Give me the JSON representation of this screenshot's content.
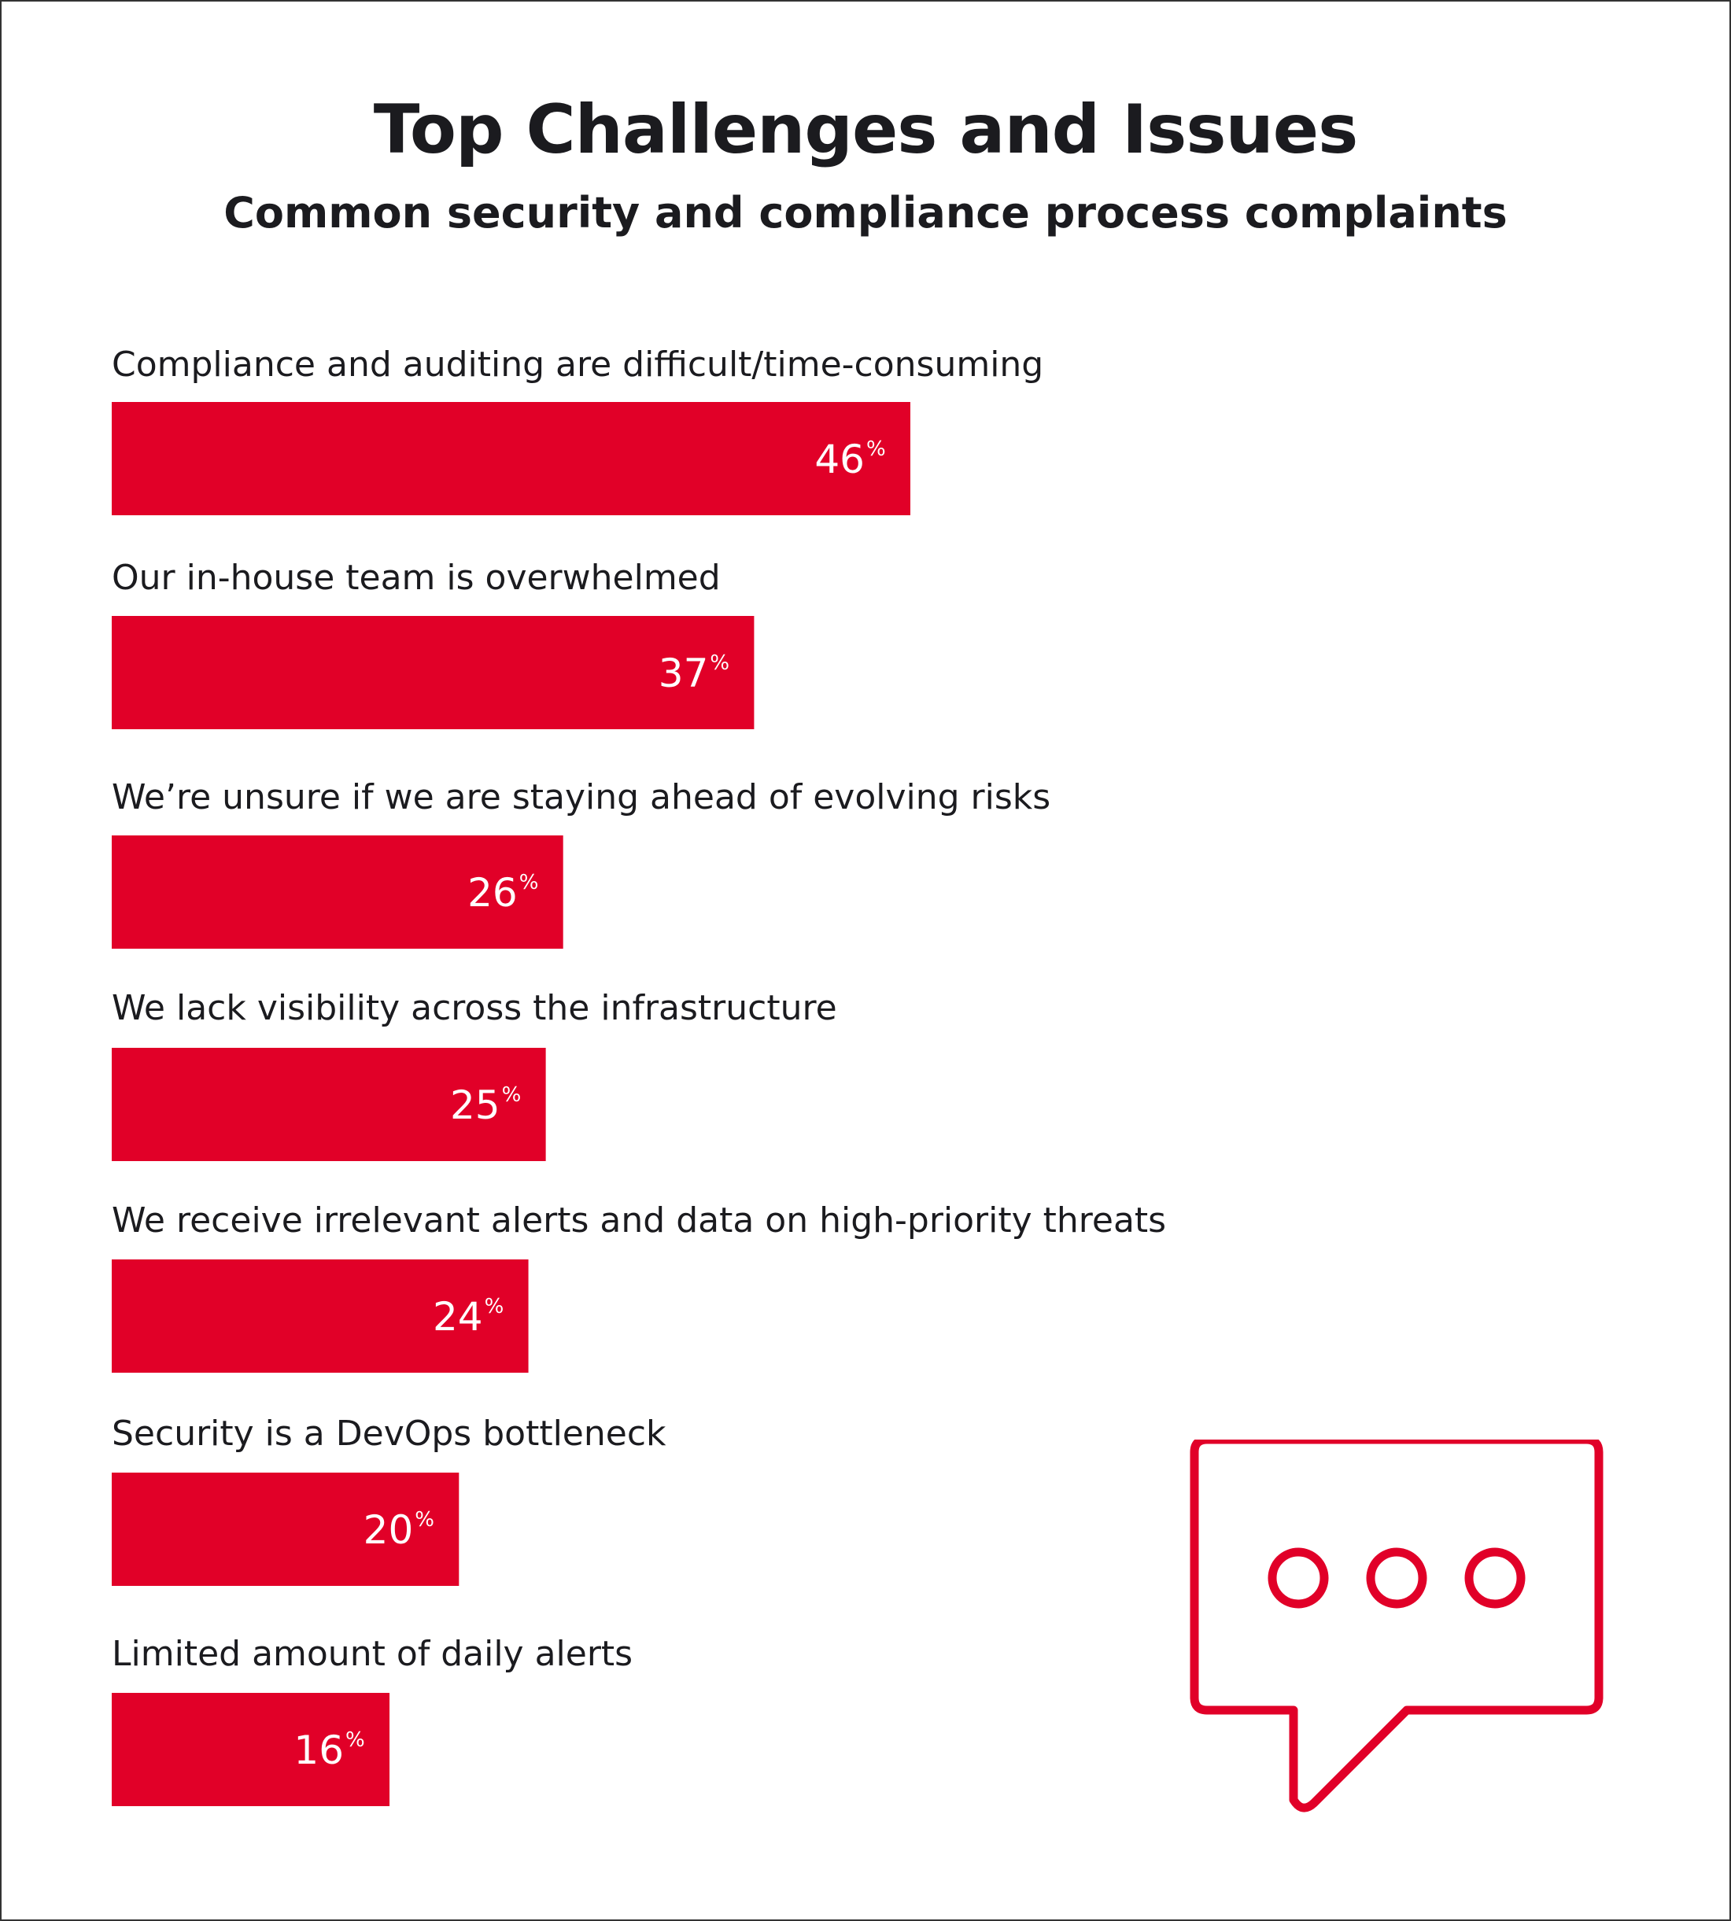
{
  "chart_data": {
    "type": "bar",
    "orientation": "horizontal",
    "title": "Top Challenges and Issues",
    "subtitle": "Common security and compliance process complaints",
    "categories": [
      "Compliance and auditing are difficult/time-consuming",
      "Our in-house team is overwhelmed",
      "We’re unsure if we are staying ahead of evolving risks",
      "We lack visibility across the infrastructure",
      "We receive irrelevant alerts and data on high-priority threats",
      "Security is a DevOps bottleneck",
      "Limited amount of daily alerts"
    ],
    "values": [
      46,
      37,
      26,
      25,
      24,
      20,
      16
    ],
    "value_suffix": "%",
    "xlim": [
      0,
      100
    ],
    "grid": false,
    "legend": "none",
    "bar_color": "#e10028",
    "label_color": "#ffffff"
  },
  "decoration": {
    "icon": "speech-bubble-icon",
    "icon_color": "#e10028"
  }
}
